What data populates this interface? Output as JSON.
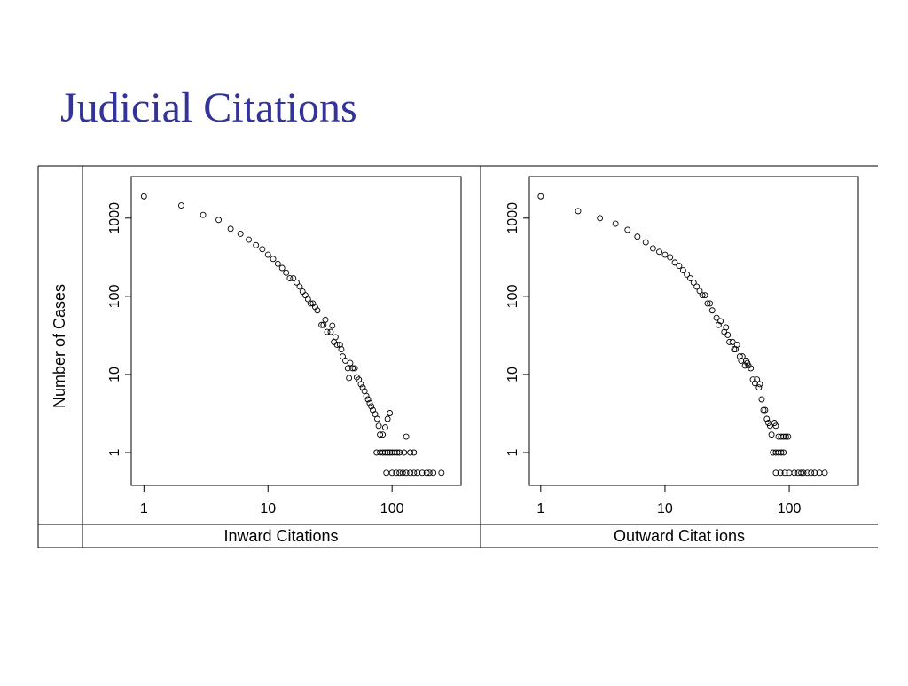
{
  "title": "Judicial Citations",
  "y_label": "Number of Cases",
  "chart_data": [
    {
      "type": "scatter",
      "x_label": "Inward Citations",
      "color": "#000000",
      "marker": "open-circle",
      "xscale": "log",
      "yscale": "log",
      "xlim": [
        0.79,
        360
      ],
      "ylim": [
        0.38,
        3400
      ],
      "xticks": [
        1,
        10,
        100
      ],
      "yticks": [
        1,
        10,
        100,
        1000
      ],
      "x": [
        1,
        2,
        3,
        4,
        5,
        6,
        7,
        8,
        9,
        10,
        11,
        12,
        13,
        14,
        15,
        16,
        17,
        18,
        19,
        20,
        21,
        22,
        23,
        24,
        25,
        27,
        28,
        29,
        30,
        32,
        33,
        34,
        35,
        36,
        38,
        39,
        40,
        42,
        44,
        45,
        46,
        48,
        50,
        52,
        54,
        56,
        58,
        60,
        62,
        64,
        66,
        68,
        70,
        73,
        76,
        78,
        80,
        84,
        88,
        92,
        96,
        130,
        75,
        80,
        84,
        88,
        92,
        96,
        100,
        105,
        110,
        115,
        125,
        140,
        150,
        90,
        100,
        108,
        115,
        122,
        130,
        140,
        150,
        160,
        175,
        190,
        200,
        215,
        250
      ],
      "values": [
        1900,
        1450,
        1100,
        950,
        730,
        630,
        530,
        450,
        400,
        340,
        300,
        260,
        230,
        200,
        170,
        170,
        150,
        133,
        115,
        103,
        92,
        81,
        81,
        73,
        66,
        43,
        43,
        50,
        35,
        35,
        42,
        26,
        30,
        24,
        24,
        21,
        17,
        15,
        12,
        9,
        14,
        12,
        12,
        9.2,
        8.6,
        7.5,
        6.8,
        6.1,
        5.3,
        4.8,
        4.3,
        3.9,
        3.5,
        3.1,
        2.7,
        2.2,
        1.7,
        1.7,
        2.1,
        2.7,
        3.2,
        1.6,
        1,
        1,
        1,
        1,
        1,
        1,
        1,
        1,
        1,
        1,
        1,
        1,
        1,
        0.55,
        0.55,
        0.55,
        0.55,
        0.55,
        0.55,
        0.55,
        0.55,
        0.55,
        0.55,
        0.55,
        0.55,
        0.55,
        0.55
      ]
    },
    {
      "type": "scatter",
      "x_label": "Outward Citat ions",
      "color": "#000000",
      "marker": "open-circle",
      "xscale": "log",
      "yscale": "log",
      "xlim": [
        0.81,
        360
      ],
      "ylim": [
        0.38,
        3400
      ],
      "xticks": [
        1,
        10,
        100
      ],
      "yticks": [
        1,
        10,
        100,
        1000
      ],
      "x": [
        1,
        2,
        3,
        4,
        5,
        6,
        7,
        8,
        9,
        10,
        11,
        12,
        13,
        14,
        15,
        16,
        17,
        18,
        19,
        20,
        21,
        22,
        23,
        24,
        26,
        27,
        28,
        30,
        31,
        32,
        33,
        35,
        36,
        37,
        38,
        40,
        41,
        42,
        44,
        45,
        46,
        47,
        49,
        51,
        53,
        55,
        57,
        58,
        60,
        62,
        64,
        66,
        68,
        70,
        72,
        76,
        78,
        82,
        86,
        90,
        94,
        98,
        74,
        78,
        82,
        86,
        90,
        78,
        85,
        92,
        100,
        110,
        118,
        125,
        130,
        140,
        150,
        160,
        175,
        193
      ],
      "values": [
        1900,
        1230,
        1000,
        850,
        710,
        580,
        490,
        410,
        370,
        340,
        315,
        270,
        245,
        215,
        190,
        170,
        150,
        133,
        117,
        103,
        103,
        81,
        81,
        66,
        53,
        43,
        48,
        35,
        40,
        32,
        26,
        26,
        21,
        21,
        24,
        17,
        15,
        17,
        13,
        15,
        14,
        13,
        12,
        8.6,
        7.7,
        8.6,
        6.8,
        7.5,
        4.8,
        3.5,
        3.5,
        2.7,
        2.4,
        2.2,
        1.7,
        2.4,
        2.2,
        1.6,
        1.6,
        1.6,
        1.6,
        1.6,
        1,
        1,
        1,
        1,
        1,
        0.55,
        0.55,
        0.55,
        0.55,
        0.55,
        0.55,
        0.55,
        0.55,
        0.55,
        0.55,
        0.55,
        0.55,
        0.55
      ]
    }
  ]
}
